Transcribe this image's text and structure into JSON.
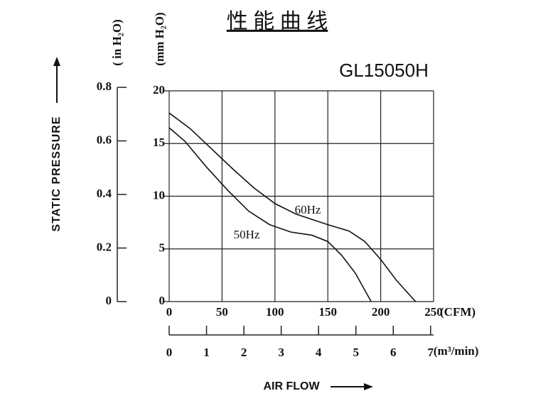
{
  "chart_data": {
    "type": "line",
    "title": "性 能 曲 线",
    "model": "GL15050H",
    "x_label": "AIR FLOW",
    "y_label": "STATIC PRESSURE",
    "x_unit": "(CFM)",
    "y_unit": "(mm H₂O)",
    "y2_unit": "( in  H₂O)",
    "x2_unit": "(m³/min)",
    "xlim": [
      0,
      250
    ],
    "xticks": [
      0,
      50,
      100,
      150,
      200,
      250
    ],
    "ylim": [
      0,
      20
    ],
    "yticks": [
      0,
      5,
      10,
      15,
      20
    ],
    "y2lim": [
      0,
      0.787
    ],
    "y2ticks": [
      0,
      0.2,
      0.4,
      0.6,
      0.8
    ],
    "x2lim": [
      0,
      7.08
    ],
    "x2ticks": [
      0,
      1,
      2,
      3,
      4,
      5,
      6,
      7
    ],
    "grid": true,
    "series": [
      {
        "name": "60Hz",
        "color": "#111",
        "x": [
          0,
          20,
          40,
          60,
          80,
          100,
          120,
          150,
          170,
          185,
          200,
          215,
          233
        ],
        "values": [
          17.9,
          16.4,
          14.5,
          12.6,
          10.8,
          9.3,
          8.3,
          7.3,
          6.7,
          5.7,
          4.0,
          2.0,
          0
        ]
      },
      {
        "name": "50Hz",
        "color": "#111",
        "x": [
          0,
          15,
          35,
          55,
          75,
          95,
          115,
          135,
          150,
          163,
          176,
          191
        ],
        "values": [
          16.5,
          15.2,
          12.8,
          10.6,
          8.6,
          7.3,
          6.6,
          6.3,
          5.7,
          4.4,
          2.7,
          0
        ]
      }
    ]
  }
}
